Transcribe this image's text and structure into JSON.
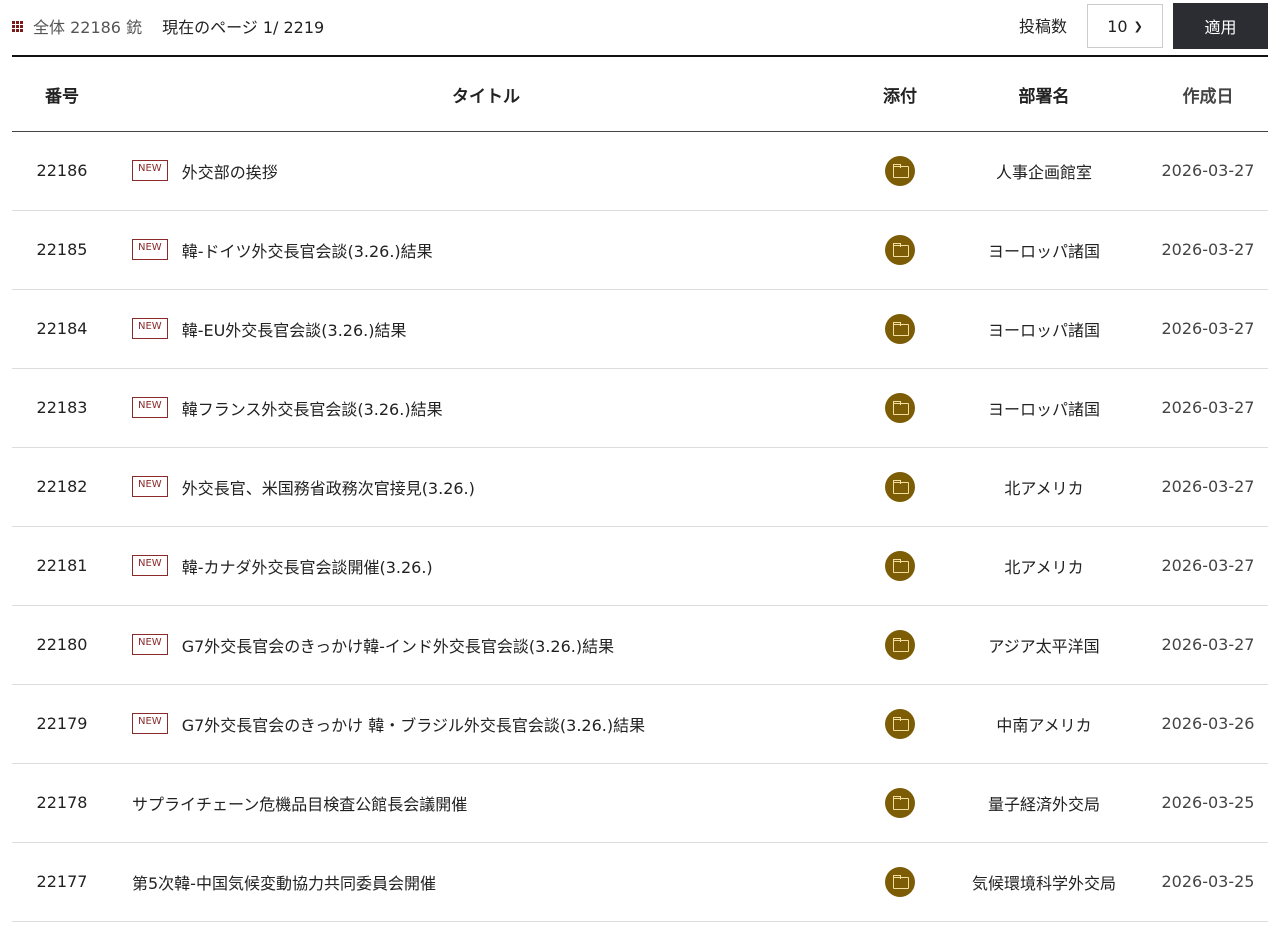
{
  "summary": {
    "total": "全体 22186 銃",
    "page": "現在のページ 1/ 2219"
  },
  "controls": {
    "perpage_label": "投稿数",
    "perpage_value": "10",
    "apply": "適用"
  },
  "columns": [
    "番号",
    "タイトル",
    "添付",
    "部署名",
    "作成日"
  ],
  "rows": [
    {
      "num": "22186",
      "new": "NEW",
      "title": "外交部の挨拶",
      "dept": "人事企画館室",
      "date": "2026-03-27"
    },
    {
      "num": "22185",
      "new": "NEW",
      "title": "韓-ドイツ外交長官会談(3.26.)結果",
      "dept": "ヨーロッパ諸国",
      "date": "2026-03-27"
    },
    {
      "num": "22184",
      "new": "NEW",
      "title": "韓-EU外交長官会談(3.26.)結果",
      "dept": "ヨーロッパ諸国",
      "date": "2026-03-27"
    },
    {
      "num": "22183",
      "new": "NEW",
      "title": "韓フランス外交長官会談(3.26.)結果",
      "dept": "ヨーロッパ諸国",
      "date": "2026-03-27"
    },
    {
      "num": "22182",
      "new": "NEW",
      "title": "外交長官、米国務省政務次官接見(3.26.)",
      "dept": "北アメリカ",
      "date": "2026-03-27"
    },
    {
      "num": "22181",
      "new": "NEW",
      "title": "韓-カナダ外交長官会談開催(3.26.)",
      "dept": "北アメリカ",
      "date": "2026-03-27"
    },
    {
      "num": "22180",
      "new": "NEW",
      "title": "G7外交長官会のきっかけ韓-インド外交長官会談(3.26.)結果",
      "dept": "アジア太平洋国",
      "date": "2026-03-27"
    },
    {
      "num": "22179",
      "new": "NEW",
      "title": "G7外交長官会のきっかけ 韓・ブラジル外交長官会談(3.26.)結果",
      "dept": "中南アメリカ",
      "date": "2026-03-26"
    },
    {
      "num": "22178",
      "new": null,
      "title": "サプライチェーン危機品目検査公館長会議開催",
      "dept": "量子経済外交局",
      "date": "2026-03-25"
    },
    {
      "num": "22177",
      "new": null,
      "title": "第5次韓-中国気候変動協力共同委員会開催",
      "dept": "気候環境科学外交局",
      "date": "2026-03-25"
    }
  ]
}
